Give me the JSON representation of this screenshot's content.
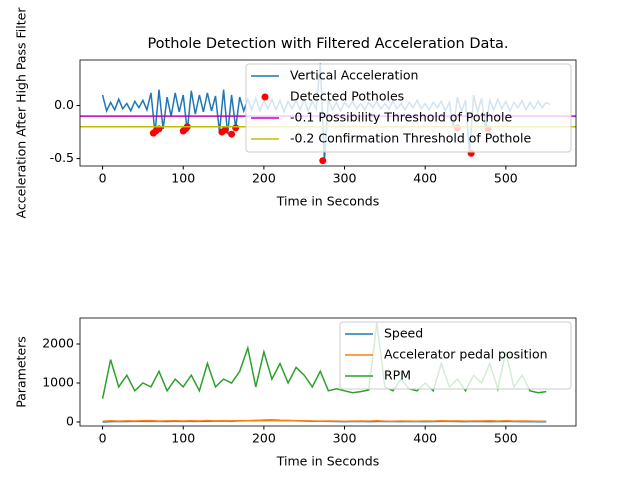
{
  "chart_data": [
    {
      "type": "line",
      "title": "Pothole Detection with Filtered Acceleration Data.",
      "xlabel": "Time in Seconds",
      "ylabel": "Acceleration After High Pass Filter",
      "xlim": [
        -28,
        587
      ],
      "ylim": [
        -0.57,
        0.43
      ],
      "xticks": [
        0,
        100,
        200,
        300,
        400,
        500
      ],
      "yticks": [
        {
          "value": 0,
          "label": "0.0"
        },
        {
          "value": -0.5,
          "label": "-0.5"
        }
      ],
      "legend": "upper right",
      "series": [
        {
          "name": "Vertical Acceleration",
          "kind": "line",
          "color": "#1f77b4",
          "x": [
            0,
            5,
            10,
            15,
            20,
            25,
            30,
            35,
            40,
            45,
            50,
            55,
            60,
            65,
            70,
            75,
            80,
            85,
            90,
            95,
            100,
            105,
            110,
            115,
            120,
            125,
            130,
            135,
            140,
            145,
            150,
            155,
            160,
            165,
            170,
            175,
            180,
            185,
            190,
            195,
            200,
            205,
            210,
            215,
            220,
            225,
            230,
            235,
            240,
            245,
            250,
            255,
            260,
            265,
            270,
            275,
            280,
            285,
            290,
            295,
            300,
            305,
            310,
            315,
            320,
            325,
            330,
            335,
            340,
            345,
            350,
            355,
            360,
            365,
            370,
            375,
            380,
            385,
            390,
            395,
            400,
            405,
            410,
            415,
            420,
            425,
            430,
            435,
            440,
            445,
            450,
            455,
            460,
            465,
            470,
            475,
            480,
            485,
            490,
            495,
            500,
            505,
            510,
            515,
            520,
            525,
            530,
            535,
            540,
            545,
            550,
            555
          ],
          "values": [
            0.1,
            -0.05,
            0.03,
            -0.04,
            0.06,
            -0.03,
            0.02,
            -0.05,
            0.04,
            -0.02,
            0.05,
            -0.04,
            0.12,
            -0.26,
            0.15,
            -0.22,
            0.08,
            -0.1,
            0.12,
            -0.06,
            0.1,
            -0.24,
            0.14,
            -0.08,
            0.1,
            -0.06,
            0.12,
            -0.05,
            0.09,
            -0.25,
            0.15,
            -0.27,
            0.1,
            -0.21,
            0.08,
            -0.05,
            0.06,
            -0.04,
            0.07,
            -0.05,
            0.05,
            -0.03,
            0.06,
            -0.04,
            0.05,
            -0.06,
            0.04,
            -0.03,
            0.05,
            -0.04,
            0.06,
            -0.05,
            0.04,
            -0.03,
            0.4,
            -0.52,
            0.06,
            -0.04,
            0.03,
            -0.05,
            0.03,
            -0.02,
            0.04,
            -0.03,
            0.02,
            -0.04,
            0.03,
            -0.02,
            0.04,
            -0.03,
            0.02,
            -0.03,
            0.04,
            -0.03,
            0.02,
            -0.04,
            0.03,
            -0.02,
            0.05,
            -0.03,
            0.02,
            -0.04,
            0.03,
            -0.02,
            0.04,
            -0.05,
            0.03,
            -0.21,
            0.08,
            -0.06,
            0.05,
            -0.45,
            0.1,
            -0.06,
            0.07,
            -0.22,
            0.05,
            -0.04,
            0.06,
            -0.03,
            0.04,
            -0.05,
            0.03,
            -0.02,
            0.05,
            -0.04,
            0.03,
            -0.03,
            0.04,
            -0.02,
            0.03,
            0.01
          ]
        },
        {
          "name": "Detected Potholes",
          "kind": "scatter",
          "color": "#ff0000",
          "x": [
            63,
            66,
            70,
            100,
            103,
            105,
            148,
            152,
            160,
            165,
            273,
            440,
            457,
            478
          ],
          "values": [
            -0.26,
            -0.24,
            -0.22,
            -0.24,
            -0.22,
            -0.2,
            -0.25,
            -0.23,
            -0.27,
            -0.21,
            -0.52,
            -0.21,
            -0.45,
            -0.22
          ]
        },
        {
          "name": "-0.1 Possibility Threshold of Pothole",
          "kind": "hline",
          "color": "#bf00bf",
          "value": -0.1
        },
        {
          "name": "-0.2 Confirmation Threshold of Pothole",
          "kind": "hline",
          "color": "#bfbf00",
          "value": -0.2
        }
      ]
    },
    {
      "type": "line",
      "xlabel": "Time in Seconds",
      "ylabel": "Parameters",
      "xlim": [
        -28,
        587
      ],
      "ylim": [
        -103,
        2667
      ],
      "xticks": [
        0,
        100,
        200,
        300,
        400,
        500
      ],
      "yticks": [
        0,
        1000,
        2000
      ],
      "legend": "upper right",
      "series": [
        {
          "name": "Speed",
          "kind": "line",
          "color": "#1f77b4",
          "x": [
            0,
            10,
            20,
            30,
            40,
            50,
            60,
            70,
            80,
            90,
            100,
            110,
            120,
            130,
            140,
            150,
            160,
            170,
            180,
            190,
            200,
            210,
            220,
            230,
            240,
            250,
            260,
            270,
            280,
            290,
            300,
            310,
            320,
            330,
            340,
            350,
            360,
            370,
            380,
            390,
            400,
            410,
            420,
            430,
            440,
            450,
            460,
            470,
            480,
            490,
            500,
            510,
            520,
            530,
            540,
            550
          ],
          "values": [
            0,
            10,
            15,
            12,
            18,
            14,
            20,
            16,
            12,
            18,
            15,
            20,
            14,
            18,
            22,
            25,
            20,
            28,
            30,
            35,
            45,
            50,
            40,
            38,
            30,
            25,
            20,
            18,
            15,
            12,
            10,
            12,
            14,
            10,
            12,
            15,
            12,
            10,
            14,
            12,
            10,
            12,
            15,
            14,
            12,
            10,
            14,
            12,
            10,
            12,
            14,
            12,
            10,
            12,
            8,
            5
          ]
        },
        {
          "name": "Accelerator pedal position",
          "kind": "line",
          "color": "#ff7f0e",
          "x": [
            0,
            10,
            20,
            30,
            40,
            50,
            60,
            70,
            80,
            90,
            100,
            110,
            120,
            130,
            140,
            150,
            160,
            170,
            180,
            190,
            200,
            210,
            220,
            230,
            240,
            250,
            260,
            270,
            280,
            290,
            300,
            310,
            320,
            330,
            340,
            350,
            360,
            370,
            380,
            390,
            400,
            410,
            420,
            430,
            440,
            450,
            460,
            470,
            480,
            490,
            500,
            510,
            520,
            530,
            540,
            550
          ],
          "values": [
            20,
            30,
            22,
            28,
            25,
            30,
            35,
            22,
            28,
            30,
            25,
            32,
            24,
            38,
            26,
            30,
            28,
            35,
            30,
            40,
            32,
            38,
            30,
            35,
            28,
            30,
            26,
            22,
            24,
            22,
            20,
            22,
            24,
            22,
            30,
            22,
            20,
            24,
            22,
            20,
            26,
            22,
            30,
            24,
            28,
            22,
            26,
            24,
            30,
            22,
            34,
            22,
            26,
            22,
            20,
            18
          ]
        },
        {
          "name": "RPM",
          "kind": "line",
          "color": "#2ca02c",
          "x": [
            0,
            10,
            20,
            30,
            40,
            50,
            60,
            70,
            80,
            90,
            100,
            110,
            120,
            130,
            140,
            150,
            160,
            170,
            180,
            190,
            200,
            210,
            220,
            230,
            240,
            250,
            260,
            270,
            280,
            290,
            300,
            310,
            320,
            330,
            340,
            350,
            360,
            370,
            380,
            390,
            400,
            410,
            420,
            430,
            440,
            450,
            460,
            470,
            480,
            490,
            500,
            510,
            520,
            530,
            540,
            550
          ],
          "values": [
            600,
            1600,
            900,
            1200,
            800,
            1000,
            900,
            1300,
            800,
            1100,
            900,
            1200,
            800,
            1500,
            900,
            1100,
            1000,
            1300,
            1900,
            900,
            1800,
            1100,
            1500,
            1000,
            1400,
            1200,
            900,
            1300,
            800,
            850,
            800,
            750,
            780,
            820,
            2540,
            900,
            800,
            1100,
            850,
            800,
            1000,
            800,
            1500,
            900,
            1100,
            800,
            1200,
            1000,
            1500,
            850,
            1800,
            900,
            1200,
            800,
            750,
            780
          ]
        }
      ]
    }
  ]
}
